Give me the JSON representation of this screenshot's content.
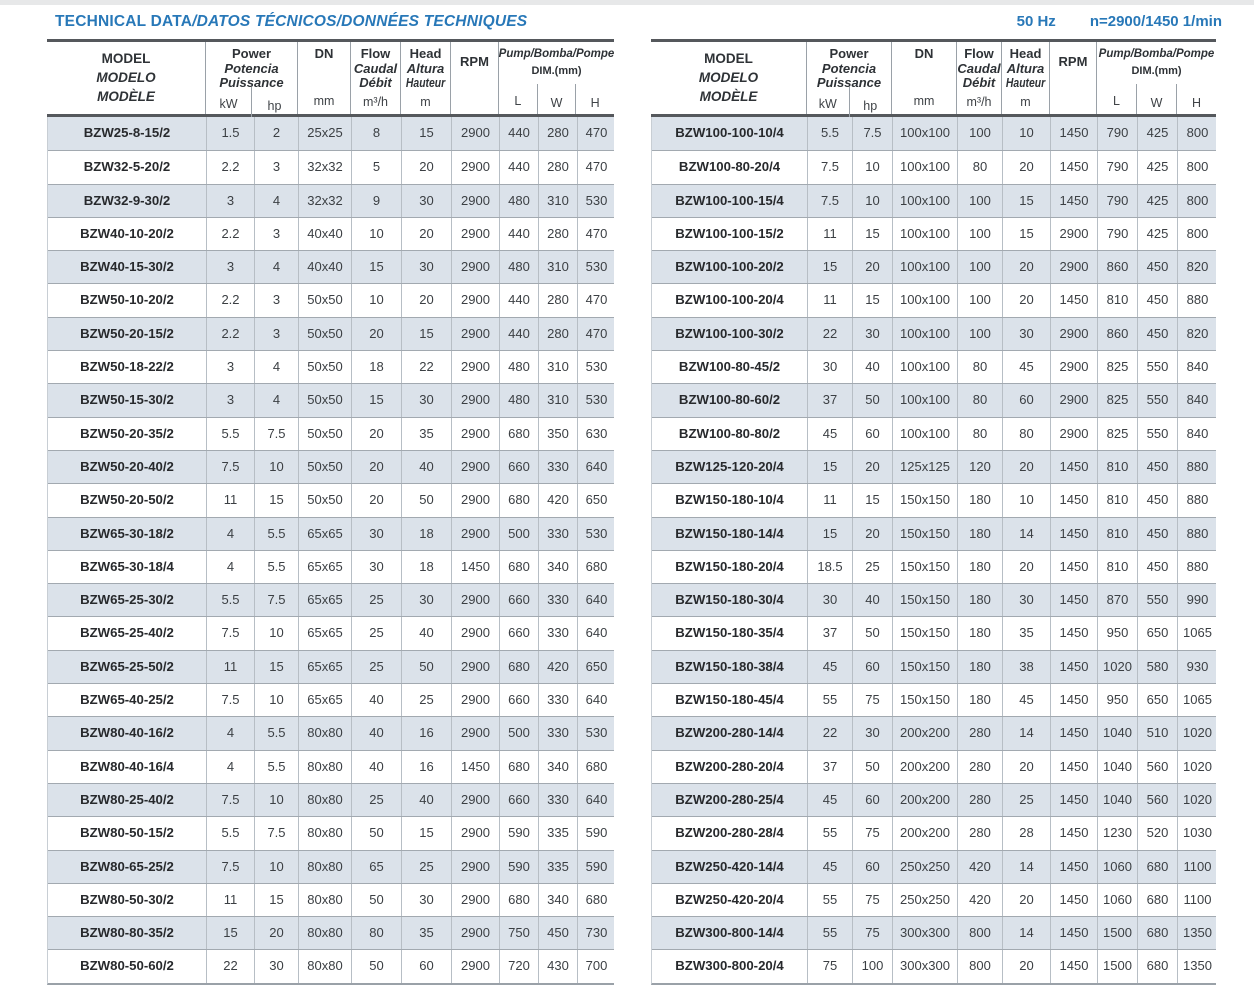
{
  "page": {
    "title_en": "TECHNICAL DATA",
    "title_rest": "/DATOS TÉCNICOS/DONNÉES TECHNIQUES",
    "frequency": "50 Hz",
    "speed": "n=2900/1450 1/min"
  },
  "colors": {
    "title_blue": "#2878b8",
    "row_stripe": "#dbe2ea",
    "header_rule": "#55585c",
    "text": "#3b3f43"
  },
  "columns_order": [
    "model",
    "kw",
    "hp",
    "dn",
    "flow",
    "head",
    "rpm",
    "l",
    "w",
    "h"
  ],
  "header": {
    "model_lines": [
      "MODEL",
      "MODELO",
      "MODÈLE"
    ],
    "power_lines": [
      "Power",
      "Potencia",
      "Puissance"
    ],
    "power_units": [
      "kW",
      "hp"
    ],
    "dn_label": "DN",
    "dn_unit": "mm",
    "flow_lines": [
      "Flow",
      "Caudal",
      "Débit"
    ],
    "flow_unit": "m³/h",
    "head_lines": [
      "Head",
      "Altura",
      "Hauteur"
    ],
    "head_unit": "m",
    "rpm_label": "RPM",
    "dim_lines": [
      "Pump/Bomba/Pompe",
      "DIM.(mm)"
    ],
    "dim_units": [
      "L",
      "W",
      "H"
    ]
  },
  "tables": {
    "left": {
      "rows": [
        {
          "model": "BZW25-8-15/2",
          "kw": "1.5",
          "hp": "2",
          "dn": "25x25",
          "flow": "8",
          "head": "15",
          "rpm": "2900",
          "l": "440",
          "w": "280",
          "h": "470"
        },
        {
          "model": "BZW32-5-20/2",
          "kw": "2.2",
          "hp": "3",
          "dn": "32x32",
          "flow": "5",
          "head": "20",
          "rpm": "2900",
          "l": "440",
          "w": "280",
          "h": "470"
        },
        {
          "model": "BZW32-9-30/2",
          "kw": "3",
          "hp": "4",
          "dn": "32x32",
          "flow": "9",
          "head": "30",
          "rpm": "2900",
          "l": "480",
          "w": "310",
          "h": "530"
        },
        {
          "model": "BZW40-10-20/2",
          "kw": "2.2",
          "hp": "3",
          "dn": "40x40",
          "flow": "10",
          "head": "20",
          "rpm": "2900",
          "l": "440",
          "w": "280",
          "h": "470"
        },
        {
          "model": "BZW40-15-30/2",
          "kw": "3",
          "hp": "4",
          "dn": "40x40",
          "flow": "15",
          "head": "30",
          "rpm": "2900",
          "l": "480",
          "w": "310",
          "h": "530"
        },
        {
          "model": "BZW50-10-20/2",
          "kw": "2.2",
          "hp": "3",
          "dn": "50x50",
          "flow": "10",
          "head": "20",
          "rpm": "2900",
          "l": "440",
          "w": "280",
          "h": "470"
        },
        {
          "model": "BZW50-20-15/2",
          "kw": "2.2",
          "hp": "3",
          "dn": "50x50",
          "flow": "20",
          "head": "15",
          "rpm": "2900",
          "l": "440",
          "w": "280",
          "h": "470"
        },
        {
          "model": "BZW50-18-22/2",
          "kw": "3",
          "hp": "4",
          "dn": "50x50",
          "flow": "18",
          "head": "22",
          "rpm": "2900",
          "l": "480",
          "w": "310",
          "h": "530"
        },
        {
          "model": "BZW50-15-30/2",
          "kw": "3",
          "hp": "4",
          "dn": "50x50",
          "flow": "15",
          "head": "30",
          "rpm": "2900",
          "l": "480",
          "w": "310",
          "h": "530"
        },
        {
          "model": "BZW50-20-35/2",
          "kw": "5.5",
          "hp": "7.5",
          "dn": "50x50",
          "flow": "20",
          "head": "35",
          "rpm": "2900",
          "l": "680",
          "w": "350",
          "h": "630"
        },
        {
          "model": "BZW50-20-40/2",
          "kw": "7.5",
          "hp": "10",
          "dn": "50x50",
          "flow": "20",
          "head": "40",
          "rpm": "2900",
          "l": "660",
          "w": "330",
          "h": "640"
        },
        {
          "model": "BZW50-20-50/2",
          "kw": "11",
          "hp": "15",
          "dn": "50x50",
          "flow": "20",
          "head": "50",
          "rpm": "2900",
          "l": "680",
          "w": "420",
          "h": "650"
        },
        {
          "model": "BZW65-30-18/2",
          "kw": "4",
          "hp": "5.5",
          "dn": "65x65",
          "flow": "30",
          "head": "18",
          "rpm": "2900",
          "l": "500",
          "w": "330",
          "h": "530"
        },
        {
          "model": "BZW65-30-18/4",
          "kw": "4",
          "hp": "5.5",
          "dn": "65x65",
          "flow": "30",
          "head": "18",
          "rpm": "1450",
          "l": "680",
          "w": "340",
          "h": "680"
        },
        {
          "model": "BZW65-25-30/2",
          "kw": "5.5",
          "hp": "7.5",
          "dn": "65x65",
          "flow": "25",
          "head": "30",
          "rpm": "2900",
          "l": "660",
          "w": "330",
          "h": "640"
        },
        {
          "model": "BZW65-25-40/2",
          "kw": "7.5",
          "hp": "10",
          "dn": "65x65",
          "flow": "25",
          "head": "40",
          "rpm": "2900",
          "l": "660",
          "w": "330",
          "h": "640"
        },
        {
          "model": "BZW65-25-50/2",
          "kw": "11",
          "hp": "15",
          "dn": "65x65",
          "flow": "25",
          "head": "50",
          "rpm": "2900",
          "l": "680",
          "w": "420",
          "h": "650"
        },
        {
          "model": "BZW65-40-25/2",
          "kw": "7.5",
          "hp": "10",
          "dn": "65x65",
          "flow": "40",
          "head": "25",
          "rpm": "2900",
          "l": "660",
          "w": "330",
          "h": "640"
        },
        {
          "model": "BZW80-40-16/2",
          "kw": "4",
          "hp": "5.5",
          "dn": "80x80",
          "flow": "40",
          "head": "16",
          "rpm": "2900",
          "l": "500",
          "w": "330",
          "h": "530"
        },
        {
          "model": "BZW80-40-16/4",
          "kw": "4",
          "hp": "5.5",
          "dn": "80x80",
          "flow": "40",
          "head": "16",
          "rpm": "1450",
          "l": "680",
          "w": "340",
          "h": "680"
        },
        {
          "model": "BZW80-25-40/2",
          "kw": "7.5",
          "hp": "10",
          "dn": "80x80",
          "flow": "25",
          "head": "40",
          "rpm": "2900",
          "l": "660",
          "w": "330",
          "h": "640"
        },
        {
          "model": "BZW80-50-15/2",
          "kw": "5.5",
          "hp": "7.5",
          "dn": "80x80",
          "flow": "50",
          "head": "15",
          "rpm": "2900",
          "l": "590",
          "w": "335",
          "h": "590"
        },
        {
          "model": "BZW80-65-25/2",
          "kw": "7.5",
          "hp": "10",
          "dn": "80x80",
          "flow": "65",
          "head": "25",
          "rpm": "2900",
          "l": "590",
          "w": "335",
          "h": "590"
        },
        {
          "model": "BZW80-50-30/2",
          "kw": "11",
          "hp": "15",
          "dn": "80x80",
          "flow": "50",
          "head": "30",
          "rpm": "2900",
          "l": "680",
          "w": "340",
          "h": "680"
        },
        {
          "model": "BZW80-80-35/2",
          "kw": "15",
          "hp": "20",
          "dn": "80x80",
          "flow": "80",
          "head": "35",
          "rpm": "2900",
          "l": "750",
          "w": "450",
          "h": "730"
        },
        {
          "model": "BZW80-50-60/2",
          "kw": "22",
          "hp": "30",
          "dn": "80x80",
          "flow": "50",
          "head": "60",
          "rpm": "2900",
          "l": "720",
          "w": "430",
          "h": "700"
        }
      ]
    },
    "right": {
      "rows": [
        {
          "model": "BZW100-100-10/4",
          "kw": "5.5",
          "hp": "7.5",
          "dn": "100x100",
          "flow": "100",
          "head": "10",
          "rpm": "1450",
          "l": "790",
          "w": "425",
          "h": "800"
        },
        {
          "model": "BZW100-80-20/4",
          "kw": "7.5",
          "hp": "10",
          "dn": "100x100",
          "flow": "80",
          "head": "20",
          "rpm": "1450",
          "l": "790",
          "w": "425",
          "h": "800"
        },
        {
          "model": "BZW100-100-15/4",
          "kw": "7.5",
          "hp": "10",
          "dn": "100x100",
          "flow": "100",
          "head": "15",
          "rpm": "1450",
          "l": "790",
          "w": "425",
          "h": "800"
        },
        {
          "model": "BZW100-100-15/2",
          "kw": "11",
          "hp": "15",
          "dn": "100x100",
          "flow": "100",
          "head": "15",
          "rpm": "2900",
          "l": "790",
          "w": "425",
          "h": "800"
        },
        {
          "model": "BZW100-100-20/2",
          "kw": "15",
          "hp": "20",
          "dn": "100x100",
          "flow": "100",
          "head": "20",
          "rpm": "2900",
          "l": "860",
          "w": "450",
          "h": "820"
        },
        {
          "model": "BZW100-100-20/4",
          "kw": "11",
          "hp": "15",
          "dn": "100x100",
          "flow": "100",
          "head": "20",
          "rpm": "1450",
          "l": "810",
          "w": "450",
          "h": "880"
        },
        {
          "model": "BZW100-100-30/2",
          "kw": "22",
          "hp": "30",
          "dn": "100x100",
          "flow": "100",
          "head": "30",
          "rpm": "2900",
          "l": "860",
          "w": "450",
          "h": "820"
        },
        {
          "model": "BZW100-80-45/2",
          "kw": "30",
          "hp": "40",
          "dn": "100x100",
          "flow": "80",
          "head": "45",
          "rpm": "2900",
          "l": "825",
          "w": "550",
          "h": "840"
        },
        {
          "model": "BZW100-80-60/2",
          "kw": "37",
          "hp": "50",
          "dn": "100x100",
          "flow": "80",
          "head": "60",
          "rpm": "2900",
          "l": "825",
          "w": "550",
          "h": "840"
        },
        {
          "model": "BZW100-80-80/2",
          "kw": "45",
          "hp": "60",
          "dn": "100x100",
          "flow": "80",
          "head": "80",
          "rpm": "2900",
          "l": "825",
          "w": "550",
          "h": "840"
        },
        {
          "model": "BZW125-120-20/4",
          "kw": "15",
          "hp": "20",
          "dn": "125x125",
          "flow": "120",
          "head": "20",
          "rpm": "1450",
          "l": "810",
          "w": "450",
          "h": "880"
        },
        {
          "model": "BZW150-180-10/4",
          "kw": "11",
          "hp": "15",
          "dn": "150x150",
          "flow": "180",
          "head": "10",
          "rpm": "1450",
          "l": "810",
          "w": "450",
          "h": "880"
        },
        {
          "model": "BZW150-180-14/4",
          "kw": "15",
          "hp": "20",
          "dn": "150x150",
          "flow": "180",
          "head": "14",
          "rpm": "1450",
          "l": "810",
          "w": "450",
          "h": "880"
        },
        {
          "model": "BZW150-180-20/4",
          "kw": "18.5",
          "hp": "25",
          "dn": "150x150",
          "flow": "180",
          "head": "20",
          "rpm": "1450",
          "l": "810",
          "w": "450",
          "h": "880"
        },
        {
          "model": "BZW150-180-30/4",
          "kw": "30",
          "hp": "40",
          "dn": "150x150",
          "flow": "180",
          "head": "30",
          "rpm": "1450",
          "l": "870",
          "w": "550",
          "h": "990"
        },
        {
          "model": "BZW150-180-35/4",
          "kw": "37",
          "hp": "50",
          "dn": "150x150",
          "flow": "180",
          "head": "35",
          "rpm": "1450",
          "l": "950",
          "w": "650",
          "h": "1065"
        },
        {
          "model": "BZW150-180-38/4",
          "kw": "45",
          "hp": "60",
          "dn": "150x150",
          "flow": "180",
          "head": "38",
          "rpm": "1450",
          "l": "1020",
          "w": "580",
          "h": "930"
        },
        {
          "model": "BZW150-180-45/4",
          "kw": "55",
          "hp": "75",
          "dn": "150x150",
          "flow": "180",
          "head": "45",
          "rpm": "1450",
          "l": "950",
          "w": "650",
          "h": "1065"
        },
        {
          "model": "BZW200-280-14/4",
          "kw": "22",
          "hp": "30",
          "dn": "200x200",
          "flow": "280",
          "head": "14",
          "rpm": "1450",
          "l": "1040",
          "w": "510",
          "h": "1020"
        },
        {
          "model": "BZW200-280-20/4",
          "kw": "37",
          "hp": "50",
          "dn": "200x200",
          "flow": "280",
          "head": "20",
          "rpm": "1450",
          "l": "1040",
          "w": "560",
          "h": "1020"
        },
        {
          "model": "BZW200-280-25/4",
          "kw": "45",
          "hp": "60",
          "dn": "200x200",
          "flow": "280",
          "head": "25",
          "rpm": "1450",
          "l": "1040",
          "w": "560",
          "h": "1020"
        },
        {
          "model": "BZW200-280-28/4",
          "kw": "55",
          "hp": "75",
          "dn": "200x200",
          "flow": "280",
          "head": "28",
          "rpm": "1450",
          "l": "1230",
          "w": "520",
          "h": "1030"
        },
        {
          "model": "BZW250-420-14/4",
          "kw": "45",
          "hp": "60",
          "dn": "250x250",
          "flow": "420",
          "head": "14",
          "rpm": "1450",
          "l": "1060",
          "w": "680",
          "h": "1100"
        },
        {
          "model": "BZW250-420-20/4",
          "kw": "55",
          "hp": "75",
          "dn": "250x250",
          "flow": "420",
          "head": "20",
          "rpm": "1450",
          "l": "1060",
          "w": "680",
          "h": "1100"
        },
        {
          "model": "BZW300-800-14/4",
          "kw": "55",
          "hp": "75",
          "dn": "300x300",
          "flow": "800",
          "head": "14",
          "rpm": "1450",
          "l": "1500",
          "w": "680",
          "h": "1350"
        },
        {
          "model": "BZW300-800-20/4",
          "kw": "75",
          "hp": "100",
          "dn": "300x300",
          "flow": "800",
          "head": "20",
          "rpm": "1450",
          "l": "1500",
          "w": "680",
          "h": "1350"
        }
      ]
    }
  }
}
